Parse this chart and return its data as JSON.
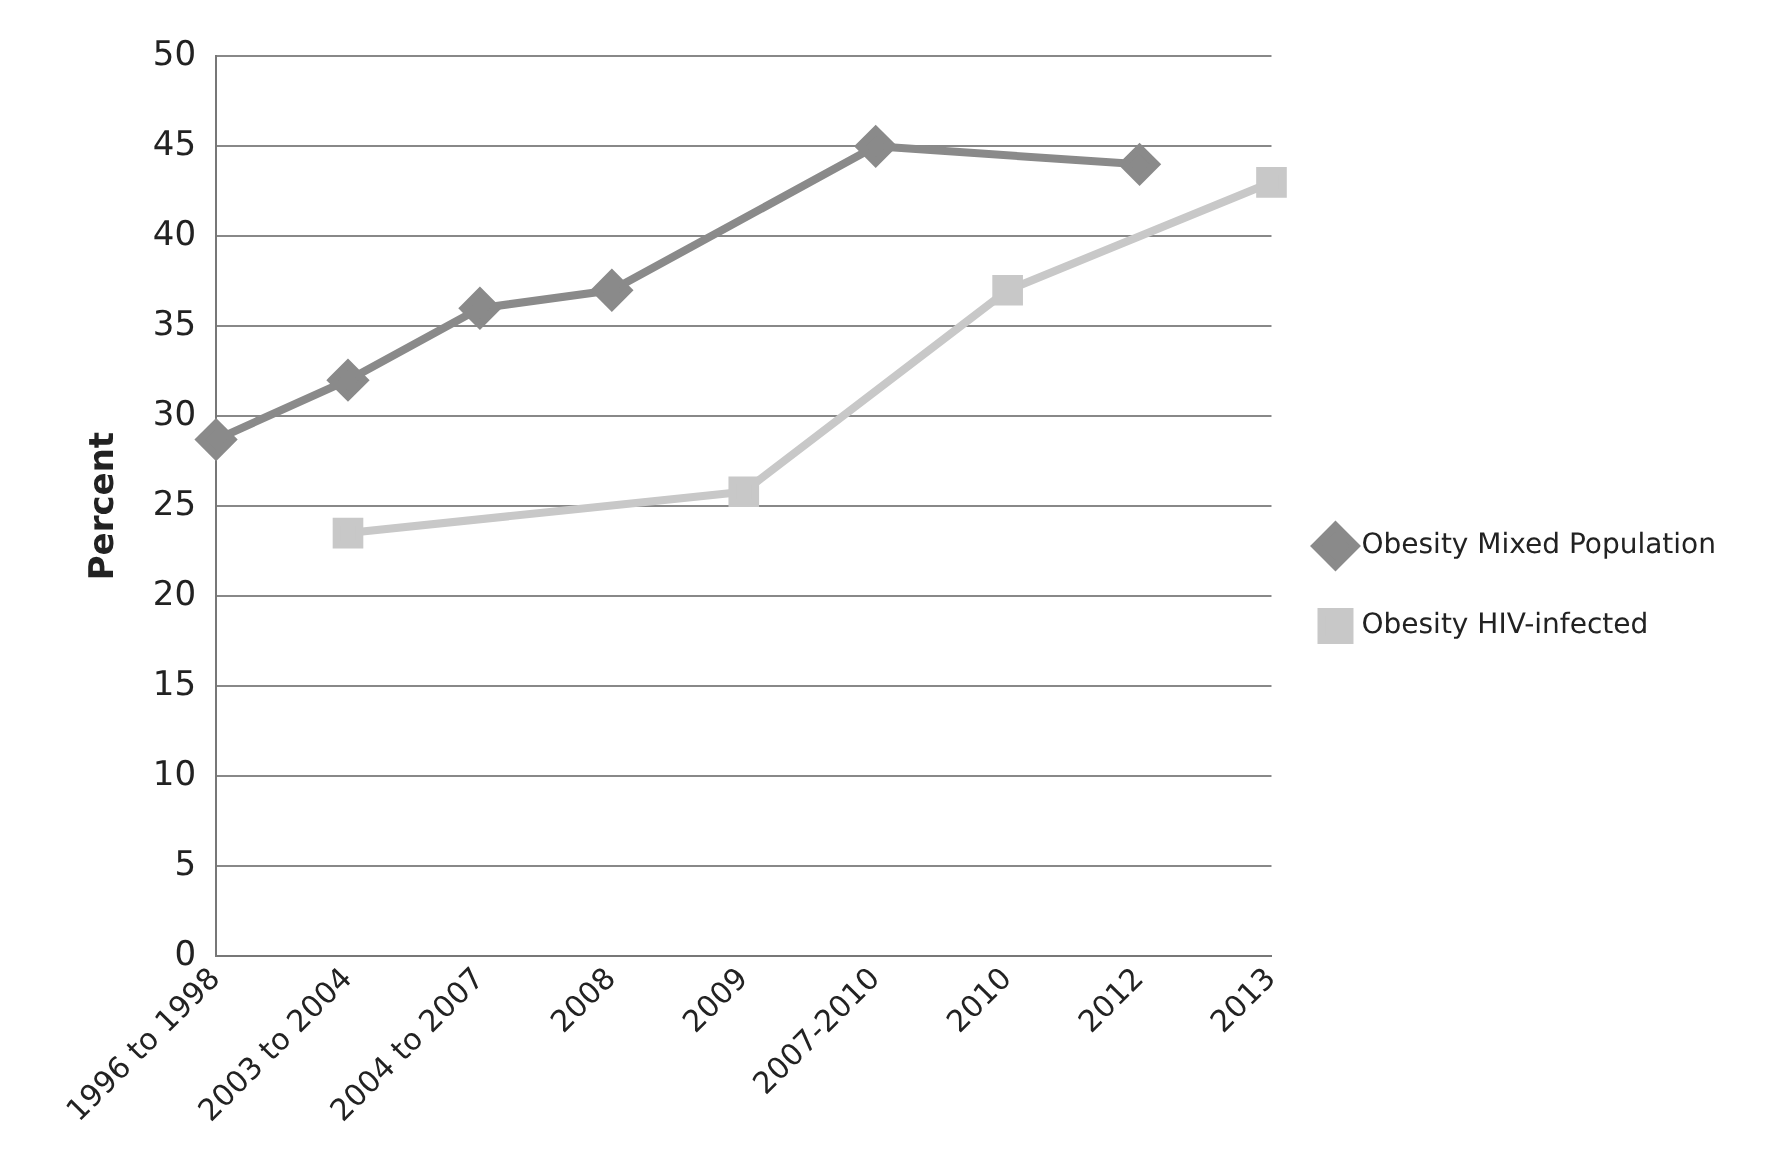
{
  "chart_data": {
    "type": "line",
    "ylabel": "Percent",
    "categories": [
      "1996 to 1998",
      "2003 to 2004",
      "2004 to 2007",
      "2008",
      "2009",
      "2007-2010",
      "2010",
      "2012",
      "2013"
    ],
    "series": [
      {
        "name": "Obesity Mixed Population",
        "color": "#8a8a8a",
        "marker": "diamond",
        "values": [
          28.7,
          32,
          36,
          37,
          null,
          45,
          null,
          44,
          null
        ]
      },
      {
        "name": "Obesity HIV-infected",
        "color": "#c8c8c8",
        "marker": "square",
        "values": [
          null,
          23.5,
          null,
          null,
          25.8,
          null,
          37,
          null,
          43
        ]
      }
    ],
    "ylim": [
      0,
      50
    ],
    "yticks": [
      0,
      5,
      10,
      15,
      20,
      25,
      30,
      35,
      40,
      45,
      50
    ],
    "grid": "y",
    "legend": "right"
  }
}
